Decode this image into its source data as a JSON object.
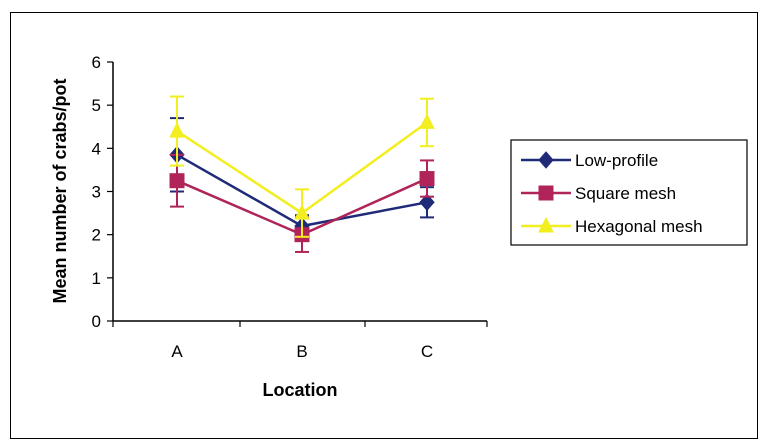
{
  "chart_data": {
    "type": "line",
    "title": "",
    "xlabel": "Location",
    "ylabel": "Mean number of crabs/pot",
    "categories": [
      "A",
      "B",
      "C"
    ],
    "ylim": [
      0,
      6
    ],
    "yticks": [
      0,
      1,
      2,
      3,
      4,
      5,
      6
    ],
    "grid": false,
    "legend_position": "right",
    "series": [
      {
        "name": "Low-profile",
        "color": "#1f2a78",
        "marker": "diamond",
        "values": [
          3.85,
          2.2,
          2.75
        ],
        "error": [
          0.85,
          0.25,
          0.35
        ]
      },
      {
        "name": "Square mesh",
        "color": "#b0245a",
        "marker": "square",
        "values": [
          3.25,
          2.0,
          3.3
        ],
        "error": [
          0.6,
          0.4,
          0.42
        ]
      },
      {
        "name": "Hexagonal mesh",
        "color": "#f2ee20",
        "marker": "triangle",
        "values": [
          4.4,
          2.5,
          4.6
        ],
        "error": [
          0.8,
          0.55,
          0.55
        ]
      }
    ]
  }
}
